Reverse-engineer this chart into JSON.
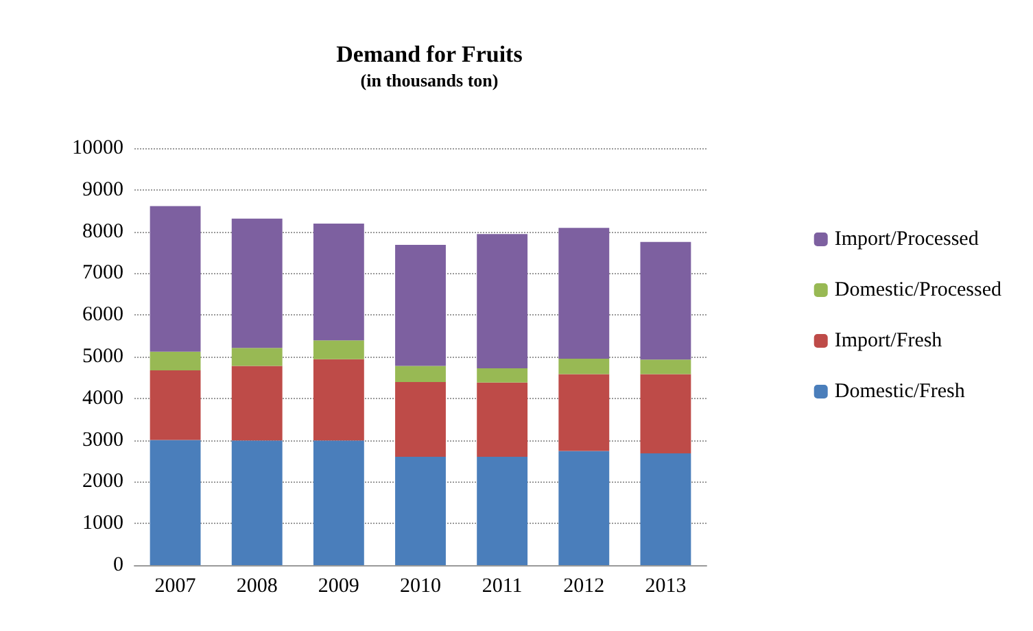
{
  "chart_data": {
    "type": "bar",
    "title": "Demand for Fruits",
    "subtitle": "(in thousands ton)",
    "categories": [
      "2007",
      "2008",
      "2009",
      "2010",
      "2011",
      "2012",
      "2013"
    ],
    "stacked": true,
    "series": [
      {
        "name": "Domestic/Fresh",
        "color": "#4a7ebb",
        "values": [
          3000,
          2990,
          2990,
          2600,
          2600,
          2740,
          2680
        ]
      },
      {
        "name": "Import/Fresh",
        "color": "#be4b48",
        "values": [
          1670,
          1790,
          1950,
          1790,
          1780,
          1840,
          1900
        ]
      },
      {
        "name": "Domestic/Processed",
        "color": "#98b954",
        "values": [
          450,
          430,
          450,
          390,
          340,
          370,
          350
        ]
      },
      {
        "name": "Import/Processed",
        "color": "#7d60a0",
        "values": [
          3490,
          3100,
          2800,
          2900,
          3220,
          3140,
          2820
        ]
      }
    ],
    "ylim": [
      0,
      10000
    ],
    "yticks": [
      0,
      1000,
      2000,
      3000,
      4000,
      5000,
      6000,
      7000,
      8000,
      9000,
      10000
    ],
    "grid": "y",
    "legend": "right"
  }
}
